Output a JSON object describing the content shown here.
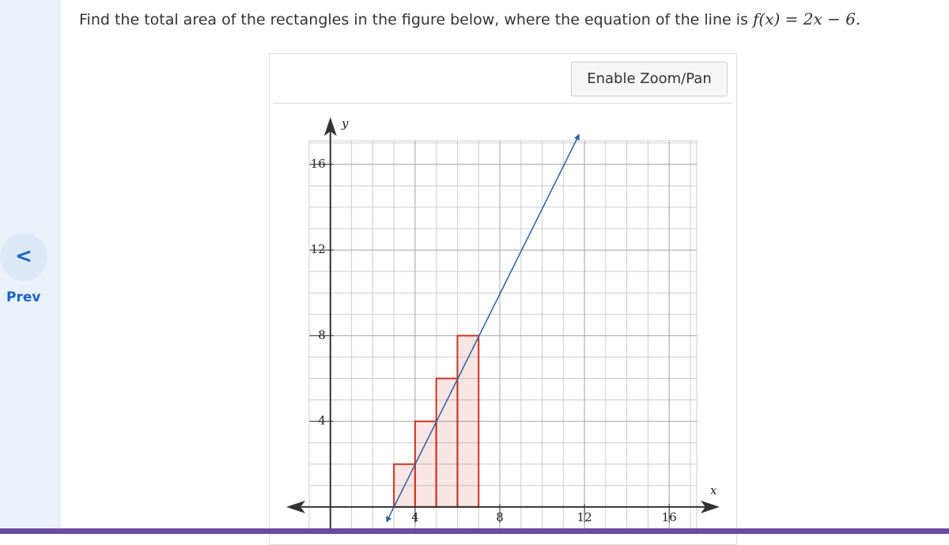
{
  "nav": {
    "prev": "Prev"
  },
  "question": {
    "text": "Find the total area of the rectangles in the figure below, where the equation of the line is",
    "equation": "f(x) = 2x − 6."
  },
  "button": "Enable Zoom/Pan",
  "chart_data": {
    "type": "histogram",
    "xlabel": "x",
    "ylabel": "y",
    "bins": [
      3,
      4,
      5,
      6,
      7
    ],
    "values": [
      2,
      4,
      6,
      8
    ],
    "color": "#cc3322",
    "line": {
      "x": [
        2.7,
        11.7
      ],
      "values": [
        -0.6,
        17.3
      ],
      "color": "#2a5f9e"
    },
    "xlim": [
      -1,
      17.3
    ],
    "ylim": [
      -1,
      17.1
    ],
    "xticks": [
      4,
      8,
      12,
      16
    ],
    "yticks": [
      4,
      8,
      12,
      16
    ],
    "grid": true
  }
}
